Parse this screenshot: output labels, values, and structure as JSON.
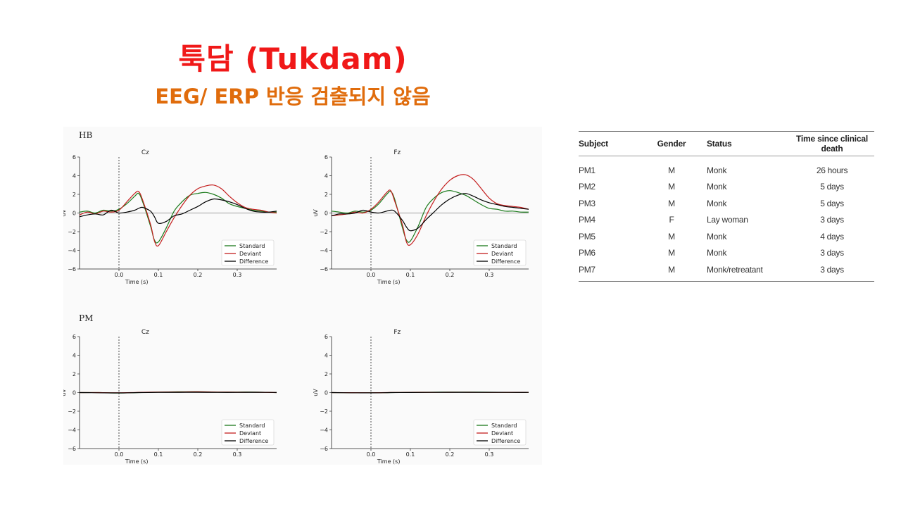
{
  "slide": {
    "title": "툭담 (Tukdam)",
    "subtitle": "EEG/ ERP 반응 검출되지 않음"
  },
  "figure": {
    "colors": {
      "standard": "#1b7a1b",
      "deviant": "#c41e1e",
      "difference": "#000000"
    },
    "legend": [
      "Standard",
      "Deviant",
      "Difference"
    ]
  },
  "chart_data": [
    {
      "type": "line",
      "group": "HB",
      "title": "Cz",
      "xlabel": "Time (s)",
      "ylabel": "uV",
      "xlim": [
        -0.1,
        0.4
      ],
      "ylim": [
        -6,
        6
      ],
      "xticks": [
        0.0,
        0.1,
        0.2,
        0.3
      ],
      "yticks": [
        6,
        4,
        2,
        0,
        -2,
        -4,
        -6
      ],
      "x": [
        -0.1,
        -0.08,
        -0.06,
        -0.04,
        -0.02,
        0.0,
        0.02,
        0.04,
        0.05,
        0.06,
        0.08,
        0.09,
        0.1,
        0.12,
        0.14,
        0.16,
        0.18,
        0.2,
        0.22,
        0.24,
        0.26,
        0.28,
        0.3,
        0.32,
        0.34,
        0.36,
        0.38,
        0.4
      ],
      "series": [
        {
          "name": "Standard",
          "values": [
            0.1,
            0.2,
            0.0,
            0.3,
            0.2,
            0.4,
            1.0,
            1.8,
            2.1,
            1.2,
            -1.4,
            -2.9,
            -3.1,
            -1.6,
            0.2,
            1.2,
            1.9,
            2.1,
            2.2,
            2.0,
            1.6,
            1.0,
            0.7,
            0.5,
            0.3,
            0.2,
            0.1,
            0.1
          ]
        },
        {
          "name": "Deviant",
          "values": [
            -0.2,
            0.1,
            -0.1,
            0.2,
            0.1,
            0.3,
            1.2,
            2.1,
            2.3,
            1.4,
            -1.2,
            -3.0,
            -3.5,
            -2.0,
            -0.5,
            0.8,
            1.9,
            2.6,
            2.9,
            3.0,
            2.6,
            1.8,
            1.1,
            0.6,
            0.4,
            0.3,
            0.1,
            0.0
          ]
        },
        {
          "name": "Difference",
          "values": [
            -0.4,
            -0.2,
            -0.1,
            -0.2,
            0.3,
            0.0,
            0.1,
            0.3,
            0.5,
            0.6,
            0.2,
            -0.4,
            -1.1,
            -0.9,
            -0.3,
            -0.1,
            0.3,
            0.7,
            1.2,
            1.5,
            1.4,
            1.2,
            0.9,
            0.5,
            0.2,
            0.1,
            0.1,
            0.2
          ]
        }
      ]
    },
    {
      "type": "line",
      "group": "HB",
      "title": "Fz",
      "xlabel": "Time (s)",
      "ylabel": "uV",
      "xlim": [
        -0.1,
        0.4
      ],
      "ylim": [
        -6,
        6
      ],
      "xticks": [
        0.0,
        0.1,
        0.2,
        0.3
      ],
      "yticks": [
        6,
        4,
        2,
        0,
        -2,
        -4,
        -6
      ],
      "x": [
        -0.1,
        -0.08,
        -0.06,
        -0.04,
        -0.02,
        0.0,
        0.02,
        0.04,
        0.05,
        0.06,
        0.08,
        0.09,
        0.1,
        0.12,
        0.14,
        0.16,
        0.18,
        0.2,
        0.22,
        0.24,
        0.26,
        0.28,
        0.3,
        0.32,
        0.34,
        0.36,
        0.38,
        0.4
      ],
      "series": [
        {
          "name": "Standard",
          "values": [
            0.2,
            0.1,
            0.0,
            0.2,
            0.1,
            0.3,
            1.0,
            2.0,
            2.3,
            1.5,
            -1.6,
            -2.9,
            -3.0,
            -1.4,
            0.6,
            1.6,
            2.2,
            2.4,
            2.2,
            1.9,
            1.4,
            0.9,
            0.5,
            0.4,
            0.2,
            0.2,
            0.1,
            0.1
          ]
        },
        {
          "name": "Deviant",
          "values": [
            -0.3,
            -0.2,
            -0.1,
            0.1,
            0.0,
            0.4,
            1.2,
            2.2,
            2.4,
            1.3,
            -1.3,
            -3.1,
            -3.4,
            -2.2,
            -0.3,
            1.3,
            2.6,
            3.5,
            4.0,
            4.1,
            3.6,
            2.6,
            1.6,
            1.0,
            0.8,
            0.7,
            0.6,
            0.4
          ]
        },
        {
          "name": "Difference",
          "values": [
            -0.3,
            -0.1,
            -0.1,
            0.0,
            0.3,
            0.1,
            0.0,
            0.2,
            0.3,
            0.2,
            -0.8,
            -1.5,
            -1.9,
            -1.6,
            -0.7,
            0.1,
            0.9,
            1.5,
            1.9,
            2.1,
            1.8,
            1.4,
            1.1,
            0.9,
            0.7,
            0.6,
            0.5,
            0.4
          ]
        }
      ]
    },
    {
      "type": "line",
      "group": "PM",
      "title": "Cz",
      "xlabel": "Time (s)",
      "ylabel": "uV",
      "xlim": [
        -0.1,
        0.4
      ],
      "ylim": [
        -6,
        6
      ],
      "xticks": [
        0.0,
        0.1,
        0.2,
        0.3
      ],
      "yticks": [
        6,
        4,
        2,
        0,
        -2,
        -4,
        -6
      ],
      "x": [
        -0.1,
        -0.05,
        0.0,
        0.05,
        0.1,
        0.15,
        0.2,
        0.25,
        0.3,
        0.35,
        0.4
      ],
      "series": [
        {
          "name": "Standard",
          "values": [
            0.0,
            0.0,
            -0.05,
            0.0,
            0.05,
            0.08,
            0.1,
            0.05,
            0.05,
            0.05,
            0.0
          ]
        },
        {
          "name": "Deviant",
          "values": [
            0.0,
            0.0,
            -0.03,
            0.02,
            0.05,
            0.06,
            0.08,
            0.05,
            0.04,
            0.04,
            0.0
          ]
        },
        {
          "name": "Difference",
          "values": [
            0.0,
            -0.02,
            -0.04,
            0.0,
            0.02,
            0.03,
            0.04,
            0.02,
            0.02,
            0.03,
            0.01
          ]
        }
      ]
    },
    {
      "type": "line",
      "group": "PM",
      "title": "Fz",
      "xlabel": "Time (s)",
      "ylabel": "uV",
      "xlim": [
        -0.1,
        0.4
      ],
      "ylim": [
        -6,
        6
      ],
      "xticks": [
        0.0,
        0.1,
        0.2,
        0.3
      ],
      "yticks": [
        6,
        4,
        2,
        0,
        -2,
        -4,
        -6
      ],
      "x": [
        -0.1,
        -0.05,
        0.0,
        0.05,
        0.1,
        0.15,
        0.2,
        0.25,
        0.3,
        0.35,
        0.4
      ],
      "series": [
        {
          "name": "Standard",
          "values": [
            0.0,
            -0.02,
            -0.03,
            0.0,
            0.03,
            0.04,
            0.05,
            0.05,
            0.04,
            0.03,
            0.02
          ]
        },
        {
          "name": "Deviant",
          "values": [
            0.0,
            -0.01,
            -0.02,
            0.01,
            0.02,
            0.03,
            0.04,
            0.04,
            0.03,
            0.03,
            0.02
          ]
        },
        {
          "name": "Difference",
          "values": [
            0.0,
            -0.02,
            -0.03,
            0.0,
            0.01,
            0.02,
            0.03,
            0.03,
            0.03,
            0.02,
            0.02
          ]
        }
      ]
    }
  ],
  "table": {
    "headers": [
      "Subject",
      "Gender",
      "Status",
      "Time since clinical death"
    ],
    "rows": [
      [
        "PM1",
        "M",
        "Monk",
        "26 hours"
      ],
      [
        "PM2",
        "M",
        "Monk",
        "5 days"
      ],
      [
        "PM3",
        "M",
        "Monk",
        "5 days"
      ],
      [
        "PM4",
        "F",
        "Lay woman",
        "3 days"
      ],
      [
        "PM5",
        "M",
        "Monk",
        "4 days"
      ],
      [
        "PM6",
        "M",
        "Monk",
        "3 days"
      ],
      [
        "PM7",
        "M",
        "Monk/retreatant",
        "3 days"
      ]
    ]
  }
}
